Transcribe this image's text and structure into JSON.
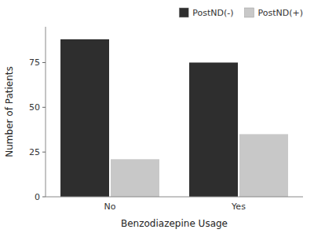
{
  "chart_data": {
    "type": "bar",
    "categories": [
      "No",
      "Yes"
    ],
    "series": [
      {
        "name": "PostND(-)",
        "color": "#2e2e2e",
        "values": [
          88,
          75
        ]
      },
      {
        "name": "PostND(+)",
        "color": "#c8c8c8",
        "values": [
          21,
          35
        ]
      }
    ],
    "xlabel": "Benzodiazepine Usage",
    "ylabel": "Number of Patients",
    "ylim": [
      0,
      95
    ],
    "yticks": [
      0,
      25,
      50,
      75
    ],
    "legend": "upper right",
    "grid": false
  }
}
